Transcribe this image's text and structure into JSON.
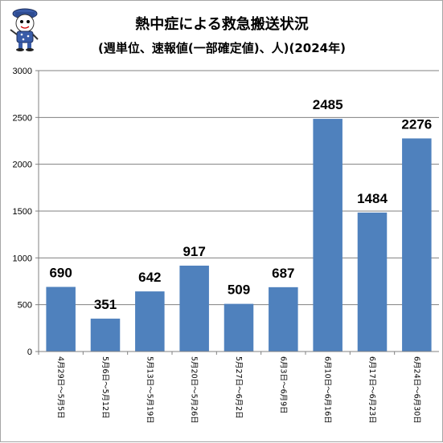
{
  "chart_data": {
    "type": "bar",
    "title": "熱中症による救急搬送状況",
    "subtitle": "(週単位、速報値(一部確定値)、人)(2024年)",
    "categories": [
      "4月29日～5月5日",
      "5月6日～5月12日",
      "5月13日～5月19日",
      "5月20日～5月26日",
      "5月27日～6月2日",
      "6月3日～6月9日",
      "6月10日～6月16日",
      "6月17日～6月23日",
      "6月24日～6月30日"
    ],
    "values": [
      690,
      351,
      642,
      917,
      509,
      687,
      2485,
      1484,
      2276
    ],
    "data_labels": [
      "690",
      "351",
      "642",
      "917",
      "509",
      "687",
      "2485",
      "1484",
      "2276"
    ],
    "ylim": [
      0,
      3000
    ],
    "yticks": [
      "0",
      "500",
      "1000",
      "1500",
      "2000",
      "2500",
      "3000"
    ],
    "xlabel": "",
    "ylabel": "",
    "grid": true,
    "legend": "none",
    "bar_color": "#4f81bd"
  },
  "mascot": {
    "icon": "mascot-icon"
  }
}
